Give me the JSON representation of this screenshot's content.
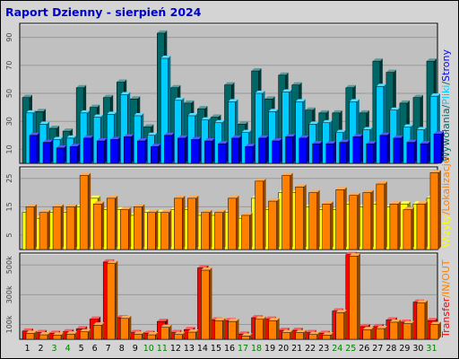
{
  "title": "Raport Dzienny -  sierpień 2024",
  "colors": {
    "hits": "#006666",
    "files": "#00ccff",
    "pages": "#0000ff",
    "visits": "#ffff00",
    "sites": "#ff8000",
    "kbytes": "#ff0000",
    "kbin": "#ff8000",
    "kbout": "#ff8000",
    "weekday": "#000000",
    "weekend": "#008000",
    "panel_bg": "#c0c0c0",
    "frame_bg": "#d4d4d4"
  },
  "chart_data": [
    {
      "type": "bar",
      "name": "hits-files-pages",
      "categories": [
        "1",
        "2",
        "3",
        "4",
        "5",
        "6",
        "7",
        "8",
        "9",
        "10",
        "11",
        "12",
        "13",
        "14",
        "15",
        "16",
        "17",
        "18",
        "19",
        "20",
        "21",
        "22",
        "23",
        "24",
        "25",
        "26",
        "27",
        "28",
        "29",
        "30",
        "31"
      ],
      "ylim": [
        0,
        100
      ],
      "y_ticks": [
        "10",
        "30",
        "50",
        "70",
        "90"
      ],
      "series": [
        {
          "name": "Wywołania",
          "values": [
            47,
            37,
            25,
            23,
            54,
            40,
            47,
            58,
            46,
            26,
            93,
            54,
            43,
            39,
            33,
            56,
            28,
            66,
            46,
            63,
            56,
            38,
            36,
            36,
            54,
            36,
            73,
            65,
            43,
            47,
            73
          ]
        },
        {
          "name": "Pliki",
          "values": [
            36,
            28,
            17,
            18,
            36,
            33,
            35,
            49,
            34,
            20,
            75,
            45,
            34,
            31,
            29,
            44,
            22,
            50,
            37,
            51,
            44,
            28,
            29,
            22,
            44,
            24,
            55,
            38,
            26,
            24,
            48
          ]
        },
        {
          "name": "Strony",
          "values": [
            20,
            15,
            11,
            12,
            18,
            16,
            17,
            19,
            16,
            12,
            20,
            18,
            17,
            16,
            14,
            18,
            12,
            18,
            16,
            19,
            18,
            14,
            14,
            15,
            19,
            14,
            20,
            18,
            15,
            14,
            21
          ]
        }
      ],
      "right_labels": [
        "Wywołania",
        "/",
        "Pliki",
        "/",
        "Strony"
      ]
    },
    {
      "type": "bar",
      "name": "visits-sites",
      "categories": [
        "1",
        "2",
        "3",
        "4",
        "5",
        "6",
        "7",
        "8",
        "9",
        "10",
        "11",
        "12",
        "13",
        "14",
        "15",
        "16",
        "17",
        "18",
        "19",
        "20",
        "21",
        "22",
        "23",
        "24",
        "25",
        "26",
        "27",
        "28",
        "29",
        "30",
        "31"
      ],
      "ylim": [
        0,
        29
      ],
      "y_ticks": [
        "5",
        "15",
        "25"
      ],
      "series": [
        {
          "name": "Wizyty",
          "values": [
            13,
            11,
            13,
            13,
            15,
            18,
            14,
            14,
            12,
            13,
            13,
            14,
            14,
            12,
            12,
            13,
            11,
            18,
            14,
            20,
            20,
            15,
            14,
            14,
            16,
            15,
            16,
            15,
            16,
            16,
            18
          ]
        },
        {
          "name": "Lokalizacje",
          "values": [
            15,
            13,
            15,
            15,
            26,
            16,
            18,
            14,
            15,
            13,
            13,
            18,
            18,
            13,
            13,
            18,
            12,
            24,
            17,
            26,
            22,
            20,
            16,
            21,
            19,
            20,
            23,
            16,
            14,
            16,
            27
          ]
        }
      ],
      "right_labels": [
        "Wizyty",
        "/",
        "Lokalizacje"
      ]
    },
    {
      "type": "bar",
      "name": "traffic",
      "categories": [
        "1",
        "2",
        "3",
        "4",
        "5",
        "6",
        "7",
        "8",
        "9",
        "10",
        "11",
        "12",
        "13",
        "14",
        "15",
        "16",
        "17",
        "18",
        "19",
        "20",
        "21",
        "22",
        "23",
        "24",
        "25",
        "26",
        "27",
        "28",
        "29",
        "30",
        "31"
      ],
      "ylim": [
        0,
        580000
      ],
      "y_ticks": [
        "100k",
        "300k",
        "500k"
      ],
      "series": [
        {
          "name": "Transfer",
          "values": [
            55000,
            45000,
            40000,
            50000,
            70000,
            135000,
            520000,
            145000,
            45000,
            40000,
            120000,
            45000,
            65000,
            480000,
            130000,
            125000,
            35000,
            145000,
            135000,
            60000,
            60000,
            45000,
            40000,
            190000,
            570000,
            85000,
            85000,
            130000,
            115000,
            250000,
            125000
          ]
        },
        {
          "name": "IN",
          "values": [
            40000,
            30000,
            28000,
            35000,
            50000,
            95000,
            510000,
            140000,
            35000,
            30000,
            80000,
            32000,
            48000,
            465000,
            125000,
            120000,
            22000,
            135000,
            125000,
            45000,
            45000,
            32000,
            28000,
            180000,
            560000,
            65000,
            72000,
            115000,
            105000,
            245000,
            100000
          ]
        },
        {
          "name": "OUT",
          "values": [
            40000,
            30000,
            28000,
            35000,
            50000,
            95000,
            510000,
            140000,
            35000,
            30000,
            80000,
            32000,
            48000,
            465000,
            125000,
            120000,
            22000,
            135000,
            125000,
            45000,
            45000,
            32000,
            28000,
            180000,
            560000,
            65000,
            72000,
            115000,
            105000,
            245000,
            100000
          ]
        }
      ],
      "right_labels": [
        "Transfer",
        "/",
        "IN",
        "/",
        "OUT"
      ]
    }
  ],
  "weekend_days": [
    3,
    4,
    10,
    11,
    17,
    18,
    24,
    25,
    31
  ]
}
